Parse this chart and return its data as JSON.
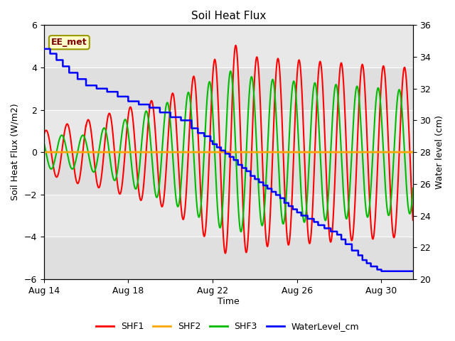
{
  "title": "Soil Heat Flux",
  "xlabel": "Time",
  "ylabel_left": "Soil Heat Flux (W/m2)",
  "ylabel_right": "Water level (cm)",
  "ylim_left": [
    -6,
    6
  ],
  "ylim_right": [
    20,
    36
  ],
  "xlim": [
    0,
    17.5
  ],
  "bg_color": "#e8e8e8",
  "fig_bg": "#ffffff",
  "tag_text": "EE_met",
  "tag_facecolor": "#ffffcc",
  "tag_edgecolor": "#999900",
  "tag_textcolor": "#800000",
  "xtick_labels": [
    "Aug 14",
    "Aug 18",
    "Aug 22",
    "Aug 26",
    "Aug 30"
  ],
  "xtick_positions": [
    0,
    4,
    8,
    12,
    16
  ],
  "ytick_left": [
    -6,
    -4,
    -2,
    0,
    2,
    4,
    6
  ],
  "ytick_right": [
    20,
    22,
    24,
    26,
    28,
    30,
    32,
    34,
    36
  ],
  "legend_labels": [
    "SHF1",
    "SHF2",
    "SHF3",
    "WaterLevel_cm"
  ],
  "legend_colors": [
    "#ff0000",
    "#ffa500",
    "#00bb00",
    "#0000ff"
  ],
  "shf1_color": "#ff0000",
  "shf2_color": "#ffa500",
  "shf3_color": "#00bb00",
  "water_color": "#0000ff",
  "line_width": 1.5
}
